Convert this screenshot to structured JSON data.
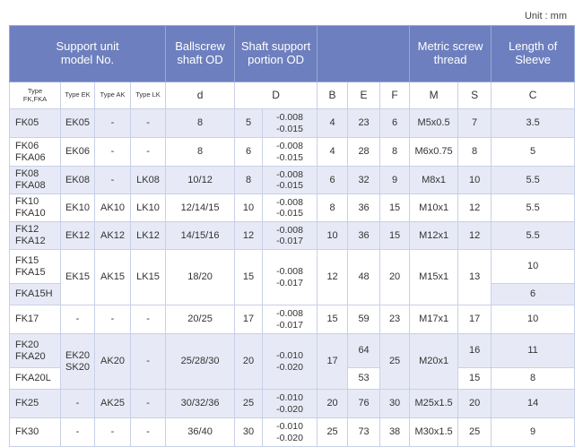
{
  "unit": "Unit : mm",
  "header": {
    "support_unit": [
      "Support unit",
      "model No."
    ],
    "ballscrew": [
      "Ballscrew",
      "shaft OD"
    ],
    "shaft_support": [
      "Shaft support",
      "portion OD"
    ],
    "metric": [
      "Metric screw",
      "thread"
    ],
    "sleeve": [
      "Length of",
      "Sleeve"
    ]
  },
  "subheader": {
    "type_fk": [
      "Type",
      "FK,FKA"
    ],
    "type_ek": "Type EK",
    "type_ak": "Type AK",
    "type_lk": "Type LK",
    "d": "d",
    "D": "D",
    "B": "B",
    "E": "E",
    "F": "F",
    "M": "M",
    "S": "S",
    "C": "C"
  },
  "rows": [
    {
      "fk": [
        "FK05"
      ],
      "ek": "EK05",
      "ak": "-",
      "lk": "-",
      "d": "8",
      "D": "5",
      "tol": [
        "-0.008",
        "-0.015"
      ],
      "B": "4",
      "E": "23",
      "F": "6",
      "M": "M5x0.5",
      "S": "7",
      "C": "3.5"
    },
    {
      "fk": [
        "FK06",
        "FKA06"
      ],
      "ek": "EK06",
      "ak": "-",
      "lk": "-",
      "d": "8",
      "D": "6",
      "tol": [
        "-0.008",
        "-0.015"
      ],
      "B": "4",
      "E": "28",
      "F": "8",
      "M": "M6x0.75",
      "S": "8",
      "C": "5"
    },
    {
      "fk": [
        "FK08",
        "FKA08"
      ],
      "ek": "EK08",
      "ak": "-",
      "lk": "LK08",
      "d": "10/12",
      "D": "8",
      "tol": [
        "-0.008",
        "-0.015"
      ],
      "B": "6",
      "E": "32",
      "F": "9",
      "M": "M8x1",
      "S": "10",
      "C": "5.5"
    },
    {
      "fk": [
        "FK10",
        "FKA10"
      ],
      "ek": "EK10",
      "ak": "AK10",
      "lk": "LK10",
      "d": "12/14/15",
      "D": "10",
      "tol": [
        "-0.008",
        "-0.015"
      ],
      "B": "8",
      "E": "36",
      "F": "15",
      "M": "M10x1",
      "S": "12",
      "C": "5.5"
    },
    {
      "fk": [
        "FK12",
        "FKA12"
      ],
      "ek": "EK12",
      "ak": "AK12",
      "lk": "LK12",
      "d": "14/15/16",
      "D": "12",
      "tol": [
        "-0.008",
        "-0.017"
      ],
      "B": "10",
      "E": "36",
      "F": "15",
      "M": "M12x1",
      "S": "12",
      "C": "5.5"
    },
    {
      "fk": [
        "FK15",
        "FKA15"
      ],
      "fk_extra": "FKA15H",
      "ek": "EK15",
      "ak": "AK15",
      "lk": "LK15",
      "d": "18/20",
      "D": "15",
      "tol": [
        "-0.008",
        "-0.017"
      ],
      "B": "12",
      "E": "48",
      "F": "20",
      "M": "M15x1",
      "S": "13",
      "C": "10",
      "C_extra": "6"
    },
    {
      "fk": [
        "FK17"
      ],
      "ek": "-",
      "ak": "-",
      "lk": "-",
      "d": "20/25",
      "D": "17",
      "tol": [
        "-0.008",
        "-0.017"
      ],
      "B": "15",
      "E": "59",
      "F": "23",
      "M": "M17x1",
      "S": "17",
      "C": "10"
    },
    {
      "fk": [
        "FK20",
        "FKA20"
      ],
      "fk_extra": "FKA20L",
      "ek": [
        "EK20",
        "SK20"
      ],
      "ak": "AK20",
      "lk": "-",
      "d": "25/28/30",
      "D": "20",
      "tol": [
        "-0.010",
        "-0.020"
      ],
      "B": "17",
      "E": "64",
      "E_extra": "53",
      "F": "25",
      "M": "M20x1",
      "S": "16",
      "S_extra": "15",
      "C": "11",
      "C_extra": "8"
    },
    {
      "fk": [
        "FK25"
      ],
      "ek": "-",
      "ak": "AK25",
      "lk": "-",
      "d": "30/32/36",
      "D": "25",
      "tol": [
        "-0.010",
        "-0.020"
      ],
      "B": "20",
      "E": "76",
      "F": "30",
      "M": "M25x1.5",
      "S": "20",
      "C": "14"
    },
    {
      "fk": [
        "FK30"
      ],
      "ek": "-",
      "ak": "-",
      "lk": "-",
      "d": "36/40",
      "D": "30",
      "tol": [
        "-0.010",
        "-0.020"
      ],
      "B": "25",
      "E": "73",
      "F": "38",
      "M": "M30x1.5",
      "S": "25",
      "C": "9"
    }
  ]
}
